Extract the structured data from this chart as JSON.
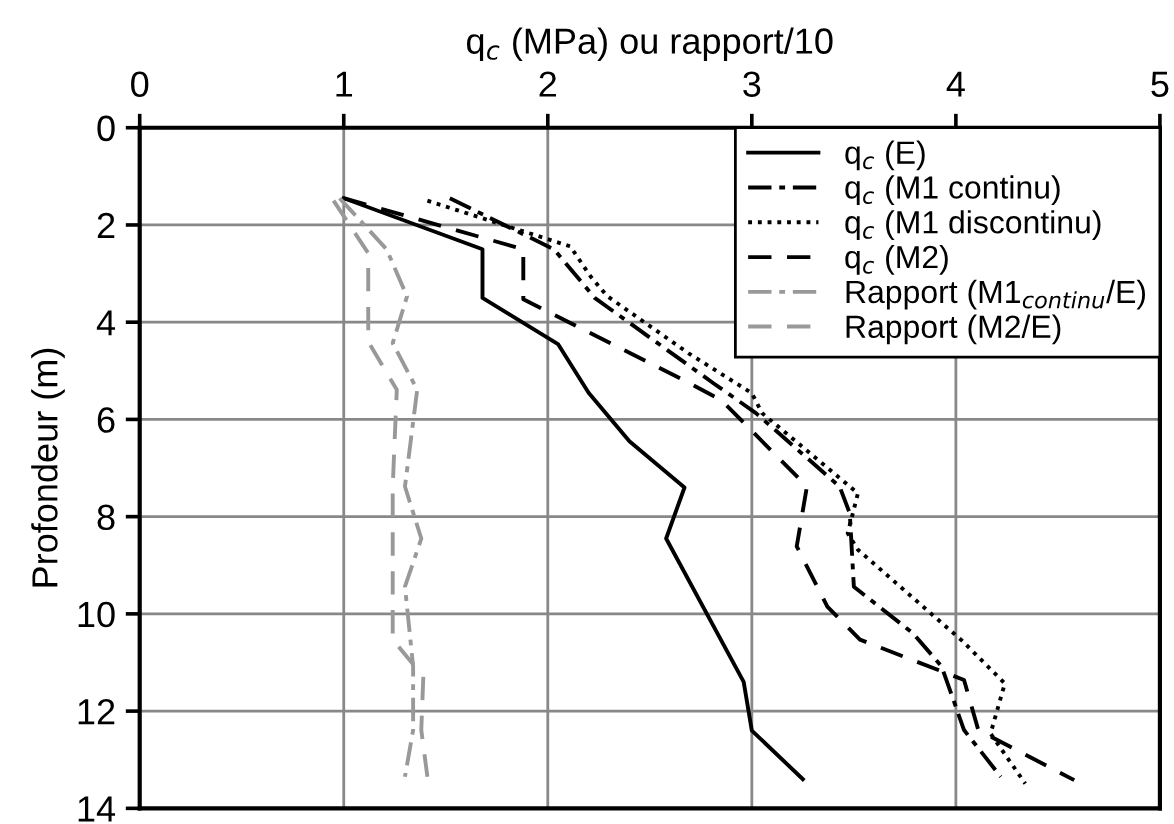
{
  "chart_data": {
    "type": "line",
    "xlabel": "q$_{c}$ (MPa) ou rapport/10",
    "ylabel": "Profondeur (m)",
    "xlim": [
      0,
      5
    ],
    "xticks": [
      0,
      1,
      2,
      3,
      4,
      5
    ],
    "ylim": [
      14,
      0
    ],
    "yticks": [
      0,
      2,
      4,
      6,
      8,
      10,
      12,
      14
    ],
    "grid": true,
    "legend": "top right",
    "series": [
      {
        "name": "q$_{c}$ (E)",
        "color": "#000000",
        "line_style": "solid",
        "x": [
          1.0,
          1.68,
          1.68,
          2.05,
          2.2,
          2.4,
          2.67,
          2.58,
          2.96,
          3.0,
          3.25
        ],
        "values": [
          1.45,
          2.5,
          3.5,
          4.45,
          5.45,
          6.45,
          7.4,
          8.45,
          11.4,
          12.4,
          13.4
        ]
      },
      {
        "name": "q$_{c}$ (M1 continu)",
        "color": "#000000",
        "line_style": "dashdot",
        "x": [
          1.52,
          2.03,
          2.23,
          2.81,
          3.02,
          3.43,
          3.48,
          3.5,
          3.79,
          3.93,
          4.04,
          4.22
        ],
        "values": [
          1.45,
          2.5,
          3.5,
          5.25,
          5.87,
          7.38,
          7.93,
          9.44,
          10.4,
          11.08,
          12.39,
          13.35
        ]
      },
      {
        "name": "q$_{c}$ (M1 discontinu)",
        "color": "#000000",
        "line_style": "dotted",
        "x": [
          1.41,
          2.11,
          2.21,
          2.29,
          2.69,
          3.0,
          3.05,
          3.44,
          3.52,
          3.47,
          3.52,
          4.03,
          4.24,
          4.17,
          4.34
        ],
        "values": [
          1.5,
          2.44,
          3.06,
          3.46,
          4.64,
          5.46,
          5.87,
          7.24,
          7.52,
          8.34,
          8.68,
          10.55,
          11.43,
          12.46,
          13.49
        ]
      },
      {
        "name": "q$_{c}$ (M2)",
        "color": "#000000",
        "line_style": "dashed",
        "x": [
          1.0,
          1.88,
          1.88,
          2.65,
          2.85,
          3.27,
          3.22,
          3.37,
          3.53,
          4.04,
          4.11,
          4.58
        ],
        "values": [
          1.45,
          2.5,
          3.53,
          5.16,
          5.6,
          7.38,
          8.61,
          9.85,
          10.53,
          11.36,
          12.39,
          13.42
        ]
      },
      {
        "name": "Rapport (M1$_{continu}$/E)",
        "color": "#999999",
        "line_style": "dashdot",
        "x": [
          0.98,
          1.21,
          1.31,
          1.24,
          1.36,
          1.3,
          1.38,
          1.3,
          1.34,
          1.34,
          1.3
        ],
        "values": [
          1.45,
          2.5,
          3.47,
          4.43,
          5.39,
          7.38,
          8.45,
          9.44,
          11.08,
          12.39,
          13.35
        ]
      },
      {
        "name": "Rapport (M2/E)",
        "color": "#999999",
        "line_style": "dashed",
        "x": [
          0.95,
          1.12,
          1.12,
          1.26,
          1.24,
          1.24,
          1.39,
          1.38,
          1.41
        ],
        "values": [
          1.5,
          2.58,
          4.4,
          5.39,
          7.38,
          10.53,
          11.29,
          12.39,
          13.35
        ]
      }
    ]
  }
}
